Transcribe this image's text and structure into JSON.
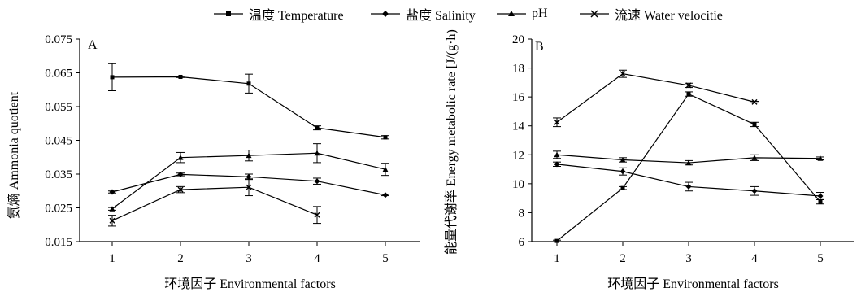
{
  "legend": {
    "items": [
      {
        "label": "温度 Temperature",
        "marker": "square"
      },
      {
        "label": "盐度 Salinity",
        "marker": "diamond"
      },
      {
        "label": "pH",
        "marker": "triangle"
      },
      {
        "label": "流速 Water velocitie",
        "marker": "cross"
      }
    ]
  },
  "chart_data": [
    {
      "type": "line",
      "panel_label": "A",
      "xlabel": "环境因子 Environmental factors",
      "ylabel": "氨熵 Ammonia quotient",
      "x": [
        1,
        2,
        3,
        4,
        5
      ],
      "ylim": [
        0.015,
        0.075
      ],
      "yticks": [
        "0.015",
        "0.025",
        "0.035",
        "0.045",
        "0.055",
        "0.065",
        "0.075"
      ],
      "grid": false,
      "series": [
        {
          "name": "温度 Temperature",
          "marker": "square",
          "values": [
            0.0637,
            0.0638,
            0.0618,
            0.0487,
            0.0459
          ],
          "errors": [
            0.004,
            0.0002,
            0.0028,
            0.0006,
            0.0005
          ]
        },
        {
          "name": "盐度 Salinity",
          "marker": "diamond",
          "values": [
            0.0297,
            0.0349,
            0.0342,
            0.0329,
            0.0288
          ],
          "errors": [
            0.0003,
            0.0004,
            0.0008,
            0.0009,
            0.0002
          ]
        },
        {
          "name": "pH",
          "marker": "triangle",
          "values": [
            0.0247,
            0.0399,
            0.0405,
            0.0412,
            0.0364
          ],
          "errors": [
            0.0004,
            0.0015,
            0.0016,
            0.0028,
            0.0018
          ]
        },
        {
          "name": "流速 Water velocitie",
          "marker": "cross",
          "values": [
            0.0212,
            0.0304,
            0.0311,
            0.0229,
            null
          ],
          "errors": [
            0.0016,
            0.0009,
            0.0025,
            0.0025,
            null
          ]
        }
      ]
    },
    {
      "type": "line",
      "panel_label": "B",
      "xlabel": "环境因子 Environmental factors",
      "ylabel": "能量代谢率 Energy metabolic rate [J/(g·h)]",
      "x": [
        1,
        2,
        3,
        4,
        5
      ],
      "ylim": [
        6,
        20
      ],
      "yticks": [
        "6",
        "8",
        "10",
        "12",
        "14",
        "16",
        "18",
        "20"
      ],
      "grid": false,
      "series": [
        {
          "name": "温度 Temperature",
          "marker": "square",
          "values": [
            6.05,
            9.7,
            16.2,
            14.1,
            8.75
          ],
          "errors": [
            0.05,
            0.1,
            0.15,
            0.15,
            0.15
          ]
        },
        {
          "name": "盐度 Salinity",
          "marker": "diamond",
          "values": [
            11.35,
            10.85,
            9.8,
            9.5,
            9.15
          ],
          "errors": [
            0.15,
            0.25,
            0.3,
            0.3,
            0.25
          ]
        },
        {
          "name": "pH",
          "marker": "triangle",
          "values": [
            12.0,
            11.65,
            11.45,
            11.8,
            11.75
          ],
          "errors": [
            0.25,
            0.15,
            0.15,
            0.2,
            0.1
          ]
        },
        {
          "name": "流速 Water velocitie",
          "marker": "cross",
          "values": [
            14.25,
            17.6,
            16.8,
            15.65,
            null
          ],
          "errors": [
            0.3,
            0.25,
            0.15,
            0.05,
            null
          ]
        }
      ]
    }
  ]
}
